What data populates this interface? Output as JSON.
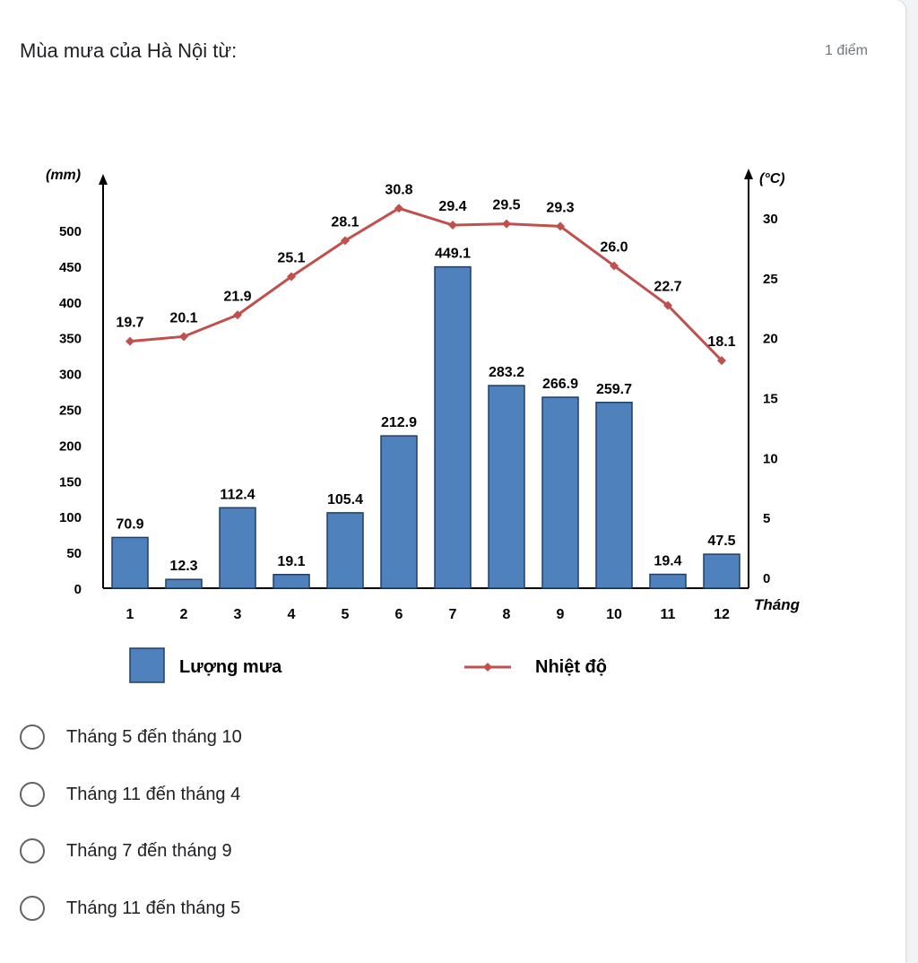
{
  "question": {
    "title": "Mùa mưa của Hà Nội từ:",
    "points": "1 điểm"
  },
  "chart_data": {
    "type": "bar",
    "categories": [
      "1",
      "2",
      "3",
      "4",
      "5",
      "6",
      "7",
      "8",
      "9",
      "10",
      "11",
      "12"
    ],
    "series": [
      {
        "name": "Lượng mưa",
        "kind": "bar",
        "axis": "left",
        "color": "#4f81bd",
        "values": [
          70.9,
          12.3,
          112.4,
          19.1,
          105.4,
          212.9,
          449.1,
          283.2,
          266.9,
          259.7,
          19.4,
          47.5
        ],
        "labels": [
          "70.9",
          "12.3",
          "112.4",
          "19.1",
          "105.4",
          "212.9",
          "449.1",
          "283.2",
          "266.9",
          "259.7",
          "19.4",
          "47.5"
        ]
      },
      {
        "name": "Nhiệt độ",
        "kind": "line",
        "axis": "right",
        "color": "#c0504d",
        "values": [
          19.7,
          20.1,
          21.9,
          25.1,
          28.1,
          30.8,
          29.4,
          29.5,
          29.3,
          26.0,
          22.7,
          18.1
        ],
        "labels": [
          "19.7",
          "20.1",
          "21.9",
          "25.1",
          "28.1",
          "30.8",
          "29.4",
          "29.5",
          "29.3",
          "26.0",
          "22.7",
          "18.1"
        ]
      }
    ],
    "ylabel_left": "(mm)",
    "ylabel_right": "(°C)",
    "xlabel": "Tháng",
    "ylim_left": [
      0,
      500
    ],
    "ylim_right": [
      0,
      30
    ],
    "yticks_left": [
      "0",
      "50",
      "100",
      "150",
      "200",
      "250",
      "300",
      "350",
      "400",
      "450",
      "500"
    ],
    "yticks_right": [
      "0",
      "5",
      "10",
      "15",
      "20",
      "25",
      "30"
    ],
    "legend": [
      "Lượng mưa",
      "Nhiệt độ"
    ],
    "legend_position": "bottom",
    "grid": false
  },
  "options": [
    {
      "label": "Tháng 5 đến tháng 10"
    },
    {
      "label": "Tháng 11 đến tháng 4"
    },
    {
      "label": "Tháng 7 đến tháng 9"
    },
    {
      "label": "Tháng 11 đến tháng 5"
    }
  ]
}
